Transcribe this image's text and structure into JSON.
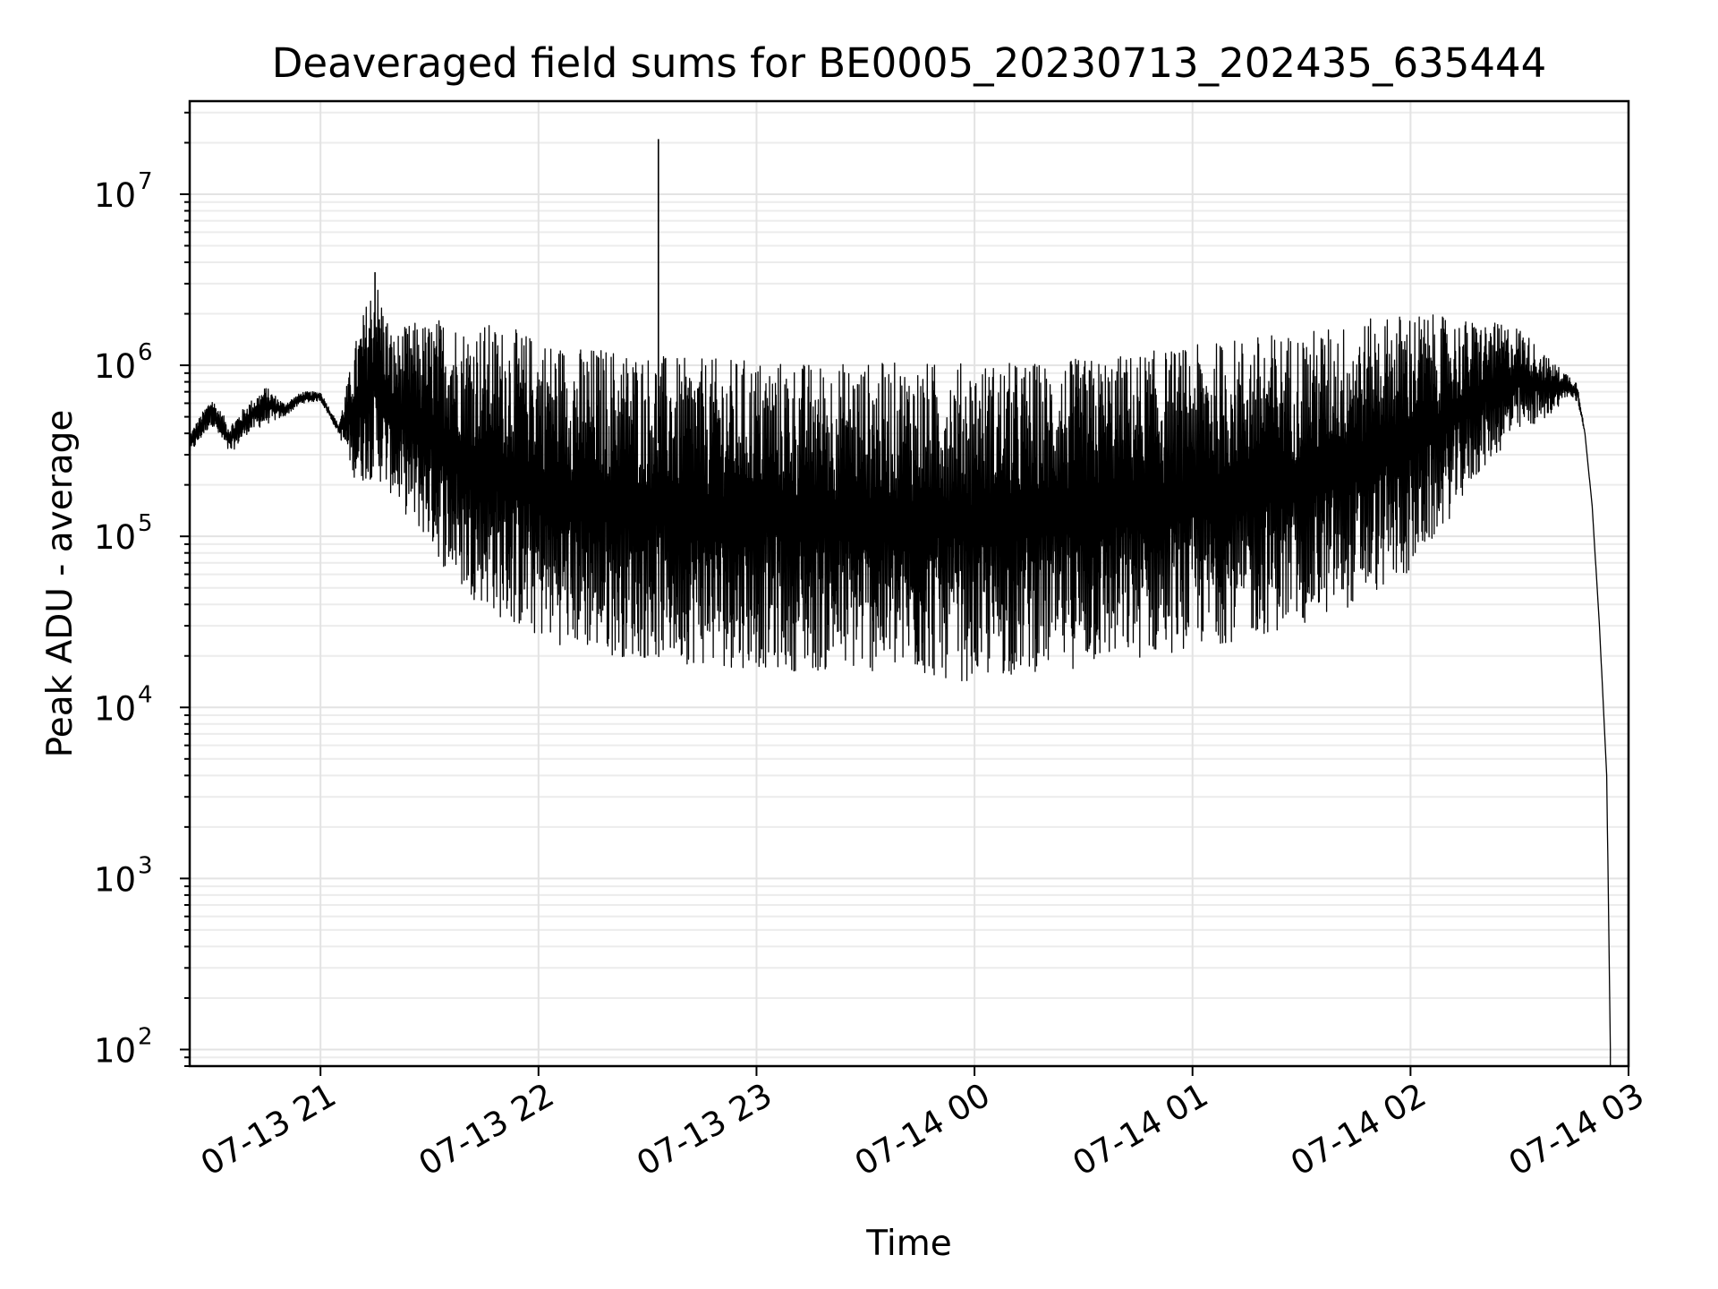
{
  "chart_data": {
    "type": "line",
    "title": "Deaveraged field sums for BE0005_20230713_202435_635444",
    "xlabel": "Time",
    "ylabel": "Peak ADU - average",
    "yscale": "log",
    "grid": true,
    "xlim": [
      "07-13 20:24",
      "07-14 03:00"
    ],
    "ylim": [
      80,
      35000000
    ],
    "x_ticks": [
      {
        "label": "07-13 21",
        "value": "07-13 21:00"
      },
      {
        "label": "07-13 22",
        "value": "07-13 22:00"
      },
      {
        "label": "07-13 23",
        "value": "07-13 23:00"
      },
      {
        "label": "07-14 00",
        "value": "07-14 00:00"
      },
      {
        "label": "07-14 01",
        "value": "07-14 01:00"
      },
      {
        "label": "07-14 02",
        "value": "07-14 02:00"
      },
      {
        "label": "07-14 03",
        "value": "07-14 03:00"
      }
    ],
    "y_ticks": [
      {
        "base": "10",
        "exp": "2",
        "value": 100
      },
      {
        "base": "10",
        "exp": "3",
        "value": 1000
      },
      {
        "base": "10",
        "exp": "4",
        "value": 10000
      },
      {
        "base": "10",
        "exp": "5",
        "value": 100000
      },
      {
        "base": "10",
        "exp": "6",
        "value": 1000000
      },
      {
        "base": "10",
        "exp": "7",
        "value": 10000000
      }
    ],
    "series": [
      {
        "color": "#000000",
        "x": [
          "07-13 20:24",
          "07-13 20:30",
          "07-13 20:35",
          "07-13 20:40",
          "07-13 20:45",
          "07-13 20:50",
          "07-13 20:55",
          "07-13 21:00",
          "07-13 21:05",
          "07-13 21:10",
          "07-13 21:15",
          "07-13 21:20",
          "07-13 21:25",
          "07-13 21:30",
          "07-13 21:35",
          "07-13 21:40",
          "07-13 21:45",
          "07-13 21:50",
          "07-13 21:55",
          "07-13 22:00",
          "07-13 22:10",
          "07-13 22:20",
          "07-13 22:30",
          "07-13 22:40",
          "07-13 22:50",
          "07-13 23:00",
          "07-13 23:15",
          "07-13 23:30",
          "07-13 23:45",
          "07-14 00:00",
          "07-14 00:15",
          "07-14 00:30",
          "07-14 00:45",
          "07-14 01:00",
          "07-14 01:15",
          "07-14 01:30",
          "07-14 01:45",
          "07-14 02:00",
          "07-14 02:10",
          "07-14 02:20",
          "07-14 02:30",
          "07-14 02:38",
          "07-14 02:43",
          "07-14 02:46",
          "07-14 02:48",
          "07-14 02:50",
          "07-14 02:52",
          "07-14 02:54",
          "07-14 02:55"
        ],
        "upper": [
          400000,
          650000,
          450000,
          600000,
          750000,
          600000,
          700000,
          700000,
          450000,
          1500000,
          3500000,
          1500000,
          1800000,
          1800000,
          2000000,
          1700000,
          1800000,
          1700000,
          1600000,
          1500000,
          1300000,
          1300000,
          1200000,
          1100000,
          1100000,
          1100000,
          1050000,
          1050000,
          1050000,
          1050000,
          1050000,
          1100000,
          1200000,
          1300000,
          1500000,
          1600000,
          1800000,
          2100000,
          1900000,
          1800000,
          1700000,
          1100000,
          900000,
          800000,
          400000,
          150000,
          30000,
          4000,
          100
        ],
        "lower": [
          300000,
          450000,
          300000,
          400000,
          450000,
          500000,
          600000,
          620000,
          400000,
          200000,
          220000,
          170000,
          120000,
          90000,
          60000,
          45000,
          40000,
          32000,
          28000,
          25000,
          22000,
          20000,
          19000,
          18000,
          17000,
          17000,
          16000,
          16000,
          15000,
          14000,
          16000,
          17000,
          19000,
          22000,
          25000,
          30000,
          40000,
          60000,
          120000,
          250000,
          400000,
          500000,
          650000,
          600000,
          400000,
          150000,
          30000,
          4000,
          100
        ]
      }
    ],
    "annotations_spikes": [
      {
        "x": "07-13 21:15",
        "y": 3500000
      },
      {
        "x": "07-13 22:33",
        "y": 21000000
      }
    ]
  }
}
